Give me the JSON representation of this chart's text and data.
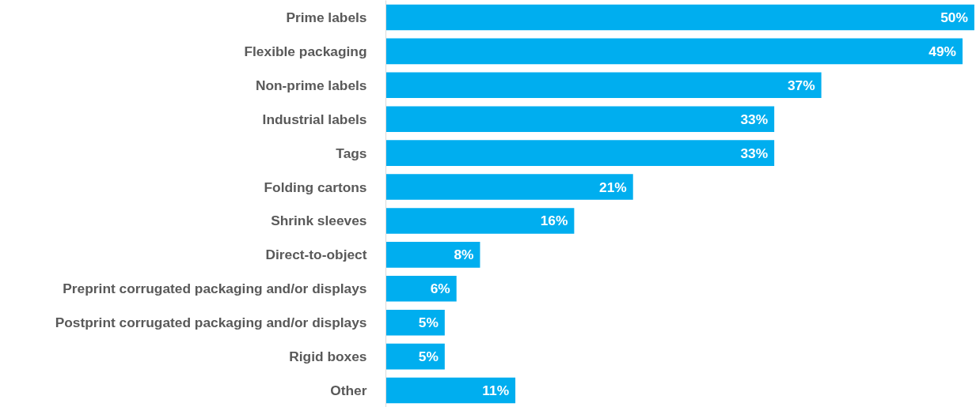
{
  "chart_data": {
    "type": "bar",
    "orientation": "horizontal",
    "color": "#00aeef",
    "grid": false,
    "categories": [
      "Prime labels",
      "Flexible packaging",
      "Non-prime labels",
      "Industrial labels",
      "Tags",
      "Folding cartons",
      "Shrink sleeves",
      "Direct-to-object",
      "Preprint corrugated packaging and/or displays",
      "Postprint corrugated packaging and/or displays",
      "Rigid boxes",
      "Other"
    ],
    "values": [
      50,
      49,
      37,
      33,
      33,
      21,
      16,
      8,
      6,
      5,
      5,
      11
    ],
    "value_labels": [
      "50%",
      "49%",
      "37%",
      "33%",
      "33%",
      "21%",
      "16%",
      "8%",
      "6%",
      "5%",
      "5%",
      "11%"
    ]
  }
}
